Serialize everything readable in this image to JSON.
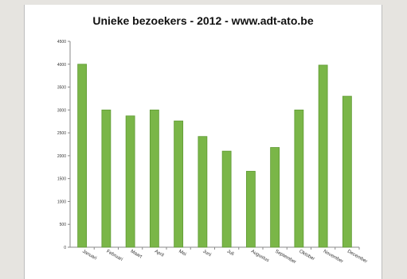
{
  "chart_data": {
    "type": "bar",
    "title": "Unieke bezoekers - 2012 - www.adt-ato.be",
    "categories": [
      "Januari",
      "Februari",
      "Maart",
      "April",
      "Mei",
      "Juni",
      "Juli",
      "Augustus",
      "September",
      "Oktober",
      "November",
      "December"
    ],
    "values": [
      4000,
      3000,
      2870,
      3000,
      2760,
      2420,
      2100,
      1660,
      2180,
      3000,
      3980,
      3300
    ],
    "yticks": [
      "0",
      "500",
      "1000",
      "1500",
      "2000",
      "2500",
      "3000",
      "3500",
      "4000",
      "4500"
    ],
    "ylim": [
      0,
      4500
    ],
    "xlabel": "",
    "ylabel": "",
    "grid": false,
    "legend": "none",
    "bar_color": "#7ab648",
    "bar_edge_color": "#5f9a33"
  }
}
